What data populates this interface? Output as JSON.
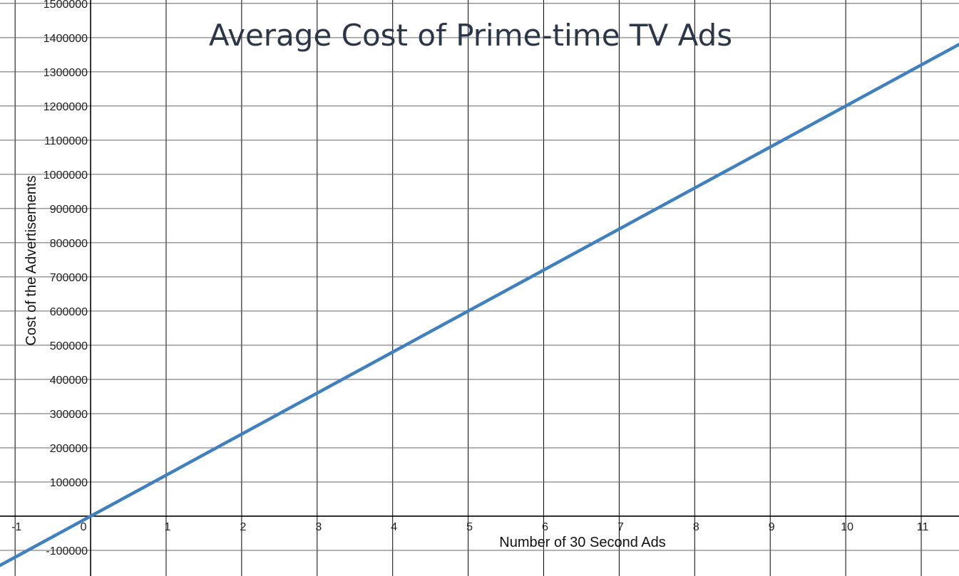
{
  "chart_data": {
    "type": "line",
    "title": "Average Cost of Prime-time TV Ads",
    "xlabel": "Number of 30 Second Ads",
    "ylabel": "Cost of the Advertisements",
    "xlim": [
      -1.2,
      11.5
    ],
    "ylim": [
      -175000,
      1510000
    ],
    "x_ticks": [
      -1,
      0,
      1,
      2,
      3,
      4,
      5,
      6,
      7,
      8,
      9,
      10,
      11
    ],
    "y_ticks": [
      -100000,
      100000,
      200000,
      300000,
      400000,
      500000,
      600000,
      700000,
      800000,
      900000,
      1000000,
      1100000,
      1200000,
      1300000,
      1400000,
      1500000
    ],
    "grid": true,
    "series": [
      {
        "x": [
          -1.2,
          0,
          5,
          10,
          11.5
        ],
        "y": [
          -144000,
          0,
          600000,
          1200000,
          1380000
        ],
        "color": "#4080bf"
      }
    ]
  }
}
